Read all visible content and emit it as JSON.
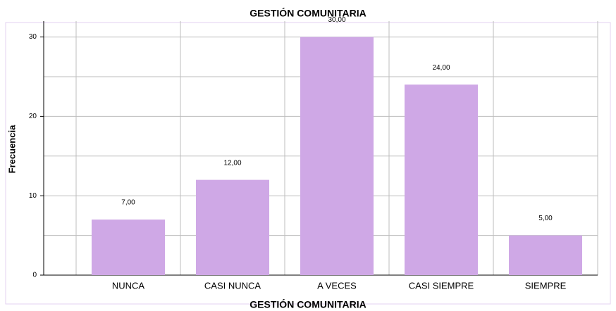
{
  "chart_data": {
    "type": "bar",
    "title": "GESTIÓN COMUNITARIA",
    "x_label": "GESTIÓN COMUNITARIA",
    "y_label": "Frecuencia",
    "categories": [
      "NUNCA",
      "CASI NUNCA",
      "A VECES",
      "CASI SIEMPRE",
      "SIEMPRE"
    ],
    "values": [
      7,
      12,
      30,
      24,
      5
    ],
    "value_labels": [
      "7,00",
      "12,00",
      "30,00",
      "24,00",
      "5,00"
    ],
    "color": "#cfa8e6",
    "ylim": [
      0,
      32
    ],
    "yticks": [
      0,
      10,
      20,
      30
    ],
    "minor_yticks": [
      5,
      15,
      25
    ],
    "grid": true
  }
}
